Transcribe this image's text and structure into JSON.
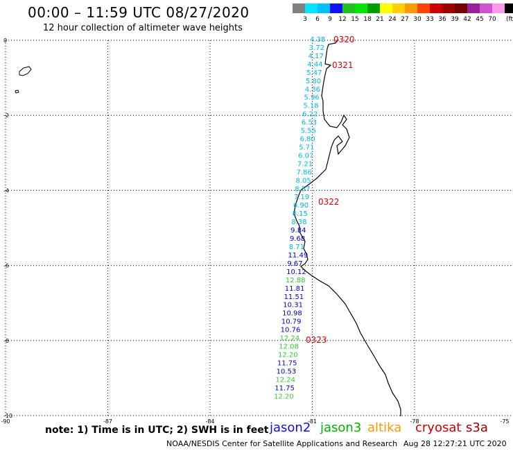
{
  "title": "00:00 – 11:59 UTC 08/27/2020",
  "subtitle": "12 hour collection of altimeter wave heights",
  "legend": {
    "colors": [
      "#808080",
      "#00e5ff",
      "#00bfff",
      "#1010ff",
      "#20c020",
      "#00e600",
      "#009e00",
      "#ffff00",
      "#ffd000",
      "#ff9900",
      "#ff4400",
      "#cc0000",
      "#a00000",
      "#7a0000",
      "#9b1f9b",
      "#cc55cc",
      "#ff99ee",
      "#000000"
    ],
    "labels": [
      "3",
      "6",
      "9",
      "12",
      "15",
      "18",
      "21",
      "24",
      "27",
      "30",
      "33",
      "36",
      "39",
      "42",
      "45",
      "70"
    ],
    "unit": "(ft)"
  },
  "map": {
    "lon_ticks": [
      "-90",
      "-87",
      "-84",
      "-81",
      "-78",
      "-75"
    ],
    "lat_ticks": [
      "0",
      "-2",
      "-4",
      "-6",
      "-8",
      "-10"
    ],
    "passes": [
      {
        "id": "0320",
        "lat": 0.0,
        "lon": -79.8
      },
      {
        "id": "0321",
        "lat": -0.7,
        "lon": -80.0
      },
      {
        "id": "0322",
        "lat": -4.3,
        "lon": -80.4
      },
      {
        "id": "0323",
        "lat": -8.0,
        "lon": -80.9
      }
    ],
    "observations": [
      {
        "value": "4.38",
        "sat": "altika"
      },
      {
        "value": "3.72",
        "sat": "altika"
      },
      {
        "value": "4.17",
        "sat": "altika"
      },
      {
        "value": "4.44",
        "sat": "altika"
      },
      {
        "value": "5.47",
        "sat": "altika"
      },
      {
        "value": "5.80",
        "sat": "altika"
      },
      {
        "value": "4.36",
        "sat": "altika"
      },
      {
        "value": "5.96",
        "sat": "altika"
      },
      {
        "value": "5.18",
        "sat": "altika"
      },
      {
        "value": "6.22",
        "sat": "altika"
      },
      {
        "value": "6.53",
        "sat": "altika"
      },
      {
        "value": "5.55",
        "sat": "altika"
      },
      {
        "value": "6.80",
        "sat": "altika"
      },
      {
        "value": "5.71",
        "sat": "altika"
      },
      {
        "value": "6.07",
        "sat": "altika"
      },
      {
        "value": "7.21",
        "sat": "altika"
      },
      {
        "value": "7.86",
        "sat": "altika"
      },
      {
        "value": "8.05",
        "sat": "altika"
      },
      {
        "value": "8.57",
        "sat": "altika"
      },
      {
        "value": "7.19",
        "sat": "altika"
      },
      {
        "value": "6.90",
        "sat": "altika"
      },
      {
        "value": "8.15",
        "sat": "altika"
      },
      {
        "value": "8.38",
        "sat": "altika"
      },
      {
        "value": "9.84",
        "sat": "jason2"
      },
      {
        "value": "9.68",
        "sat": "jason2"
      },
      {
        "value": "8.71",
        "sat": "altika"
      },
      {
        "value": "11.49",
        "sat": "jason2"
      },
      {
        "value": "9.67",
        "sat": "jason2"
      },
      {
        "value": "10.12",
        "sat": "jason2"
      },
      {
        "value": "12.88",
        "sat": "jason3"
      },
      {
        "value": "11.81",
        "sat": "jason2"
      },
      {
        "value": "11.51",
        "sat": "jason2"
      },
      {
        "value": "10.31",
        "sat": "jason2"
      },
      {
        "value": "10.98",
        "sat": "jason2"
      },
      {
        "value": "10.79",
        "sat": "jason2"
      },
      {
        "value": "10.76",
        "sat": "jason2"
      },
      {
        "value": "12.24",
        "sat": "jason3"
      },
      {
        "value": "12.08",
        "sat": "jason3"
      },
      {
        "value": "12.20",
        "sat": "jason3"
      },
      {
        "value": "11.75",
        "sat": "jason2"
      },
      {
        "value": "10.53",
        "sat": "jason2"
      },
      {
        "value": "12.24",
        "sat": "jason3"
      },
      {
        "value": "11.75",
        "sat": "jason2"
      },
      {
        "value": "12.20",
        "sat": "jason3"
      }
    ]
  },
  "note": "note:  1) Time is in UTC;  2) SWH is in feet",
  "satellites": [
    {
      "name": "jason2",
      "color": "#1010dd"
    },
    {
      "name": "jason3",
      "color": "#00b400"
    },
    {
      "name": "altika",
      "color": "#ff9900"
    },
    {
      "name": "cryosat",
      "color": "#cc0000"
    },
    {
      "name": "s3a",
      "color": "#990000"
    }
  ],
  "footer": {
    "credit": "NOAA/NESDIS Center for Satellite Applications and Research",
    "timestamp": "Aug 28 12:27:21 UTC 2020"
  }
}
